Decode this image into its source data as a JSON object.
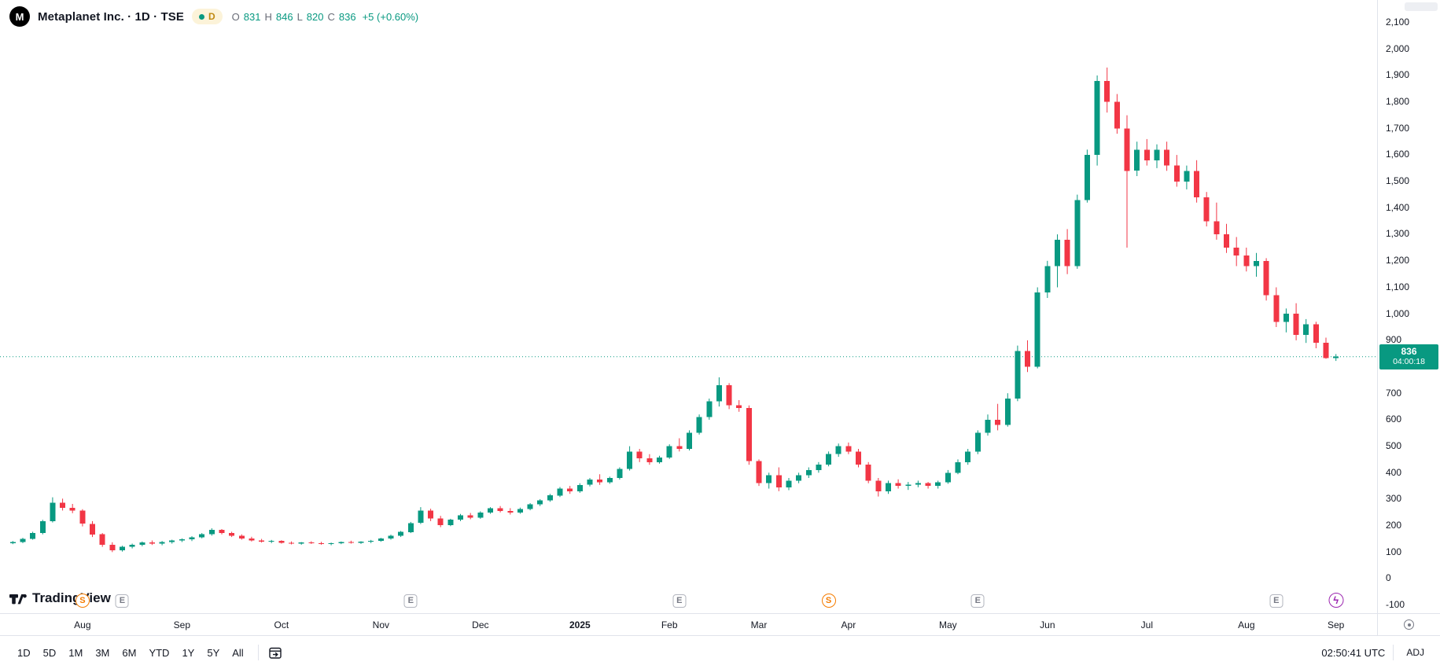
{
  "header": {
    "logo_letter": "M",
    "symbol_title": "Metaplanet Inc. · 1D · TSE",
    "interval_badge": "D",
    "ohlc": {
      "o_label": "O",
      "o_value": "831",
      "h_label": "H",
      "h_value": "846",
      "l_label": "L",
      "l_value": "820",
      "c_label": "C",
      "c_value": "836",
      "change": "+5 (+0.60%)"
    }
  },
  "watermark": {
    "text": "TradingView"
  },
  "colors": {
    "up": "#089981",
    "down": "#F23645",
    "last_price_line": "#089981",
    "badge_bg": "#089981",
    "split_marker": "#F57C00",
    "event_marker": "#9C27B0",
    "earnings_marker": "#787B86",
    "axis_border": "#E0E3EB",
    "text": "#131722",
    "muted_text": "#787B86"
  },
  "price_scale": {
    "labels": [
      {
        "t": "2,100",
        "v": 2100
      },
      {
        "t": "2,000",
        "v": 2000
      },
      {
        "t": "1,900",
        "v": 1900
      },
      {
        "t": "1,800",
        "v": 1800
      },
      {
        "t": "1,700",
        "v": 1700
      },
      {
        "t": "1,600",
        "v": 1600
      },
      {
        "t": "1,500",
        "v": 1500
      },
      {
        "t": "1,400",
        "v": 1400
      },
      {
        "t": "1,300",
        "v": 1300
      },
      {
        "t": "1,200",
        "v": 1200
      },
      {
        "t": "1,100",
        "v": 1100
      },
      {
        "t": "1,000",
        "v": 1000
      },
      {
        "t": "900",
        "v": 900
      },
      {
        "t": "700",
        "v": 700
      },
      {
        "t": "600",
        "v": 600
      },
      {
        "t": "500",
        "v": 500
      },
      {
        "t": "400",
        "v": 400
      },
      {
        "t": "300",
        "v": 300
      },
      {
        "t": "200",
        "v": 200
      },
      {
        "t": "100",
        "v": 100
      },
      {
        "t": "0",
        "v": 0
      },
      {
        "t": "-100",
        "v": -100
      }
    ],
    "last_price": "836",
    "countdown": "04:00:18"
  },
  "markers": [
    {
      "glyph": "S",
      "type": "split",
      "index": 7
    },
    {
      "glyph": "E",
      "type": "earnings",
      "index": 11
    },
    {
      "glyph": "E",
      "type": "earnings",
      "index": 40
    },
    {
      "glyph": "E",
      "type": "earnings",
      "index": 67
    },
    {
      "glyph": "S",
      "type": "split",
      "index": 82
    },
    {
      "glyph": "E",
      "type": "earnings",
      "index": 97
    },
    {
      "glyph": "E",
      "type": "earnings",
      "index": 127
    },
    {
      "glyph": "ϟ",
      "type": "event",
      "index": 133
    }
  ],
  "toolbar": {
    "ranges": [
      "1D",
      "5D",
      "1M",
      "3M",
      "6M",
      "YTD",
      "1Y",
      "5Y",
      "All"
    ],
    "clock": "02:50:41 UTC",
    "adjust_label": "ADJ"
  },
  "chart_data": {
    "type": "candlestick",
    "symbol": "Metaplanet Inc.",
    "exchange": "TSE",
    "interval": "1D",
    "last_price": 836,
    "prev_close": 831,
    "change_abs": 5,
    "change_pct": 0.6,
    "y_axis": {
      "min": -100,
      "max": 2100,
      "tick_step": 100
    },
    "x_ticks": [
      {
        "label": "Aug",
        "index": 7
      },
      {
        "label": "Sep",
        "index": 17
      },
      {
        "label": "Oct",
        "index": 27
      },
      {
        "label": "Nov",
        "index": 37
      },
      {
        "label": "Dec",
        "index": 47
      },
      {
        "label": "2025",
        "index": 57
      },
      {
        "label": "Feb",
        "index": 66
      },
      {
        "label": "Mar",
        "index": 75
      },
      {
        "label": "Apr",
        "index": 84
      },
      {
        "label": "May",
        "index": 94
      },
      {
        "label": "Jun",
        "index": 104
      },
      {
        "label": "Jul",
        "index": 114
      },
      {
        "label": "Aug",
        "index": 124
      },
      {
        "label": "Sep",
        "index": 133
      }
    ],
    "candles": [
      [
        132,
        140,
        128,
        136
      ],
      [
        136,
        152,
        132,
        148
      ],
      [
        148,
        175,
        145,
        170
      ],
      [
        170,
        220,
        165,
        215
      ],
      [
        215,
        305,
        210,
        285
      ],
      [
        285,
        300,
        255,
        265
      ],
      [
        265,
        280,
        245,
        255
      ],
      [
        255,
        260,
        195,
        205
      ],
      [
        205,
        215,
        155,
        165
      ],
      [
        165,
        170,
        118,
        125
      ],
      [
        125,
        135,
        98,
        105
      ],
      [
        105,
        122,
        100,
        118
      ],
      [
        118,
        130,
        112,
        126
      ],
      [
        126,
        138,
        120,
        134
      ],
      [
        134,
        142,
        125,
        130
      ],
      [
        130,
        140,
        124,
        136
      ],
      [
        136,
        145,
        130,
        142
      ],
      [
        142,
        150,
        136,
        146
      ],
      [
        146,
        158,
        140,
        154
      ],
      [
        154,
        170,
        150,
        165
      ],
      [
        165,
        188,
        160,
        182
      ],
      [
        182,
        185,
        165,
        170
      ],
      [
        170,
        175,
        155,
        160
      ],
      [
        160,
        165,
        145,
        150
      ],
      [
        150,
        156,
        138,
        142
      ],
      [
        142,
        148,
        134,
        138
      ],
      [
        138,
        144,
        132,
        140
      ],
      [
        140,
        143,
        130,
        133
      ],
      [
        133,
        138,
        127,
        130
      ],
      [
        130,
        136,
        126,
        134
      ],
      [
        134,
        139,
        129,
        131
      ],
      [
        131,
        137,
        126,
        129
      ],
      [
        129,
        134,
        124,
        132
      ],
      [
        132,
        138,
        128,
        136
      ],
      [
        136,
        141,
        130,
        133
      ],
      [
        133,
        139,
        129,
        137
      ],
      [
        137,
        144,
        132,
        141
      ],
      [
        141,
        152,
        137,
        149
      ],
      [
        149,
        164,
        145,
        160
      ],
      [
        160,
        178,
        155,
        174
      ],
      [
        174,
        212,
        170,
        208
      ],
      [
        208,
        268,
        204,
        255
      ],
      [
        255,
        262,
        215,
        225
      ],
      [
        225,
        235,
        192,
        200
      ],
      [
        200,
        224,
        196,
        220
      ],
      [
        220,
        242,
        215,
        237
      ],
      [
        237,
        246,
        222,
        228
      ],
      [
        228,
        252,
        224,
        248
      ],
      [
        248,
        268,
        243,
        263
      ],
      [
        263,
        272,
        248,
        253
      ],
      [
        253,
        264,
        240,
        247
      ],
      [
        247,
        266,
        243,
        261
      ],
      [
        261,
        283,
        256,
        278
      ],
      [
        278,
        298,
        272,
        293
      ],
      [
        293,
        318,
        288,
        312
      ],
      [
        312,
        344,
        306,
        338
      ],
      [
        338,
        348,
        318,
        328
      ],
      [
        328,
        358,
        322,
        352
      ],
      [
        352,
        378,
        346,
        372
      ],
      [
        372,
        392,
        352,
        362
      ],
      [
        362,
        383,
        356,
        378
      ],
      [
        378,
        418,
        372,
        412
      ],
      [
        412,
        498,
        406,
        478
      ],
      [
        478,
        488,
        438,
        452
      ],
      [
        452,
        468,
        428,
        438
      ],
      [
        438,
        462,
        432,
        455
      ],
      [
        455,
        505,
        450,
        498
      ],
      [
        498,
        528,
        478,
        488
      ],
      [
        488,
        558,
        482,
        548
      ],
      [
        548,
        618,
        542,
        608
      ],
      [
        608,
        678,
        598,
        668
      ],
      [
        668,
        758,
        648,
        728
      ],
      [
        728,
        736,
        638,
        652
      ],
      [
        652,
        672,
        628,
        642
      ],
      [
        642,
        652,
        428,
        442
      ],
      [
        442,
        448,
        348,
        358
      ],
      [
        358,
        398,
        338,
        388
      ],
      [
        388,
        418,
        328,
        342
      ],
      [
        342,
        378,
        332,
        368
      ],
      [
        368,
        398,
        358,
        388
      ],
      [
        388,
        418,
        378,
        408
      ],
      [
        408,
        438,
        398,
        428
      ],
      [
        428,
        478,
        422,
        468
      ],
      [
        468,
        508,
        458,
        498
      ],
      [
        498,
        512,
        468,
        478
      ],
      [
        478,
        488,
        418,
        428
      ],
      [
        428,
        438,
        358,
        368
      ],
      [
        368,
        378,
        308,
        328
      ],
      [
        328,
        368,
        318,
        358
      ],
      [
        358,
        373,
        338,
        348
      ],
      [
        348,
        363,
        333,
        353
      ],
      [
        353,
        368,
        343,
        358
      ],
      [
        358,
        363,
        338,
        348
      ],
      [
        348,
        368,
        338,
        362
      ],
      [
        362,
        408,
        356,
        398
      ],
      [
        398,
        448,
        392,
        438
      ],
      [
        438,
        488,
        428,
        478
      ],
      [
        478,
        558,
        468,
        548
      ],
      [
        548,
        618,
        538,
        598
      ],
      [
        598,
        658,
        558,
        578
      ],
      [
        578,
        698,
        572,
        678
      ],
      [
        678,
        878,
        668,
        858
      ],
      [
        858,
        898,
        778,
        798
      ],
      [
        798,
        1098,
        792,
        1078
      ],
      [
        1078,
        1198,
        1058,
        1178
      ],
      [
        1178,
        1298,
        1098,
        1278
      ],
      [
        1278,
        1318,
        1148,
        1178
      ],
      [
        1178,
        1448,
        1168,
        1428
      ],
      [
        1428,
        1618,
        1418,
        1598
      ],
      [
        1598,
        1898,
        1558,
        1878
      ],
      [
        1878,
        1928,
        1758,
        1798
      ],
      [
        1798,
        1828,
        1678,
        1698
      ],
      [
        1698,
        1748,
        1248,
        1538
      ],
      [
        1538,
        1648,
        1518,
        1618
      ],
      [
        1618,
        1658,
        1558,
        1578
      ],
      [
        1578,
        1638,
        1548,
        1618
      ],
      [
        1618,
        1648,
        1538,
        1558
      ],
      [
        1558,
        1598,
        1478,
        1498
      ],
      [
        1498,
        1558,
        1468,
        1538
      ],
      [
        1538,
        1578,
        1418,
        1438
      ],
      [
        1438,
        1458,
        1328,
        1348
      ],
      [
        1348,
        1418,
        1278,
        1298
      ],
      [
        1298,
        1338,
        1228,
        1248
      ],
      [
        1248,
        1288,
        1178,
        1218
      ],
      [
        1218,
        1248,
        1158,
        1178
      ],
      [
        1178,
        1228,
        1138,
        1198
      ],
      [
        1198,
        1208,
        1048,
        1068
      ],
      [
        1068,
        1098,
        948,
        968
      ],
      [
        968,
        1018,
        928,
        998
      ],
      [
        998,
        1038,
        898,
        918
      ],
      [
        918,
        978,
        888,
        958
      ],
      [
        958,
        968,
        868,
        888
      ],
      [
        888,
        908,
        828,
        831
      ],
      [
        831,
        846,
        820,
        836
      ]
    ]
  }
}
